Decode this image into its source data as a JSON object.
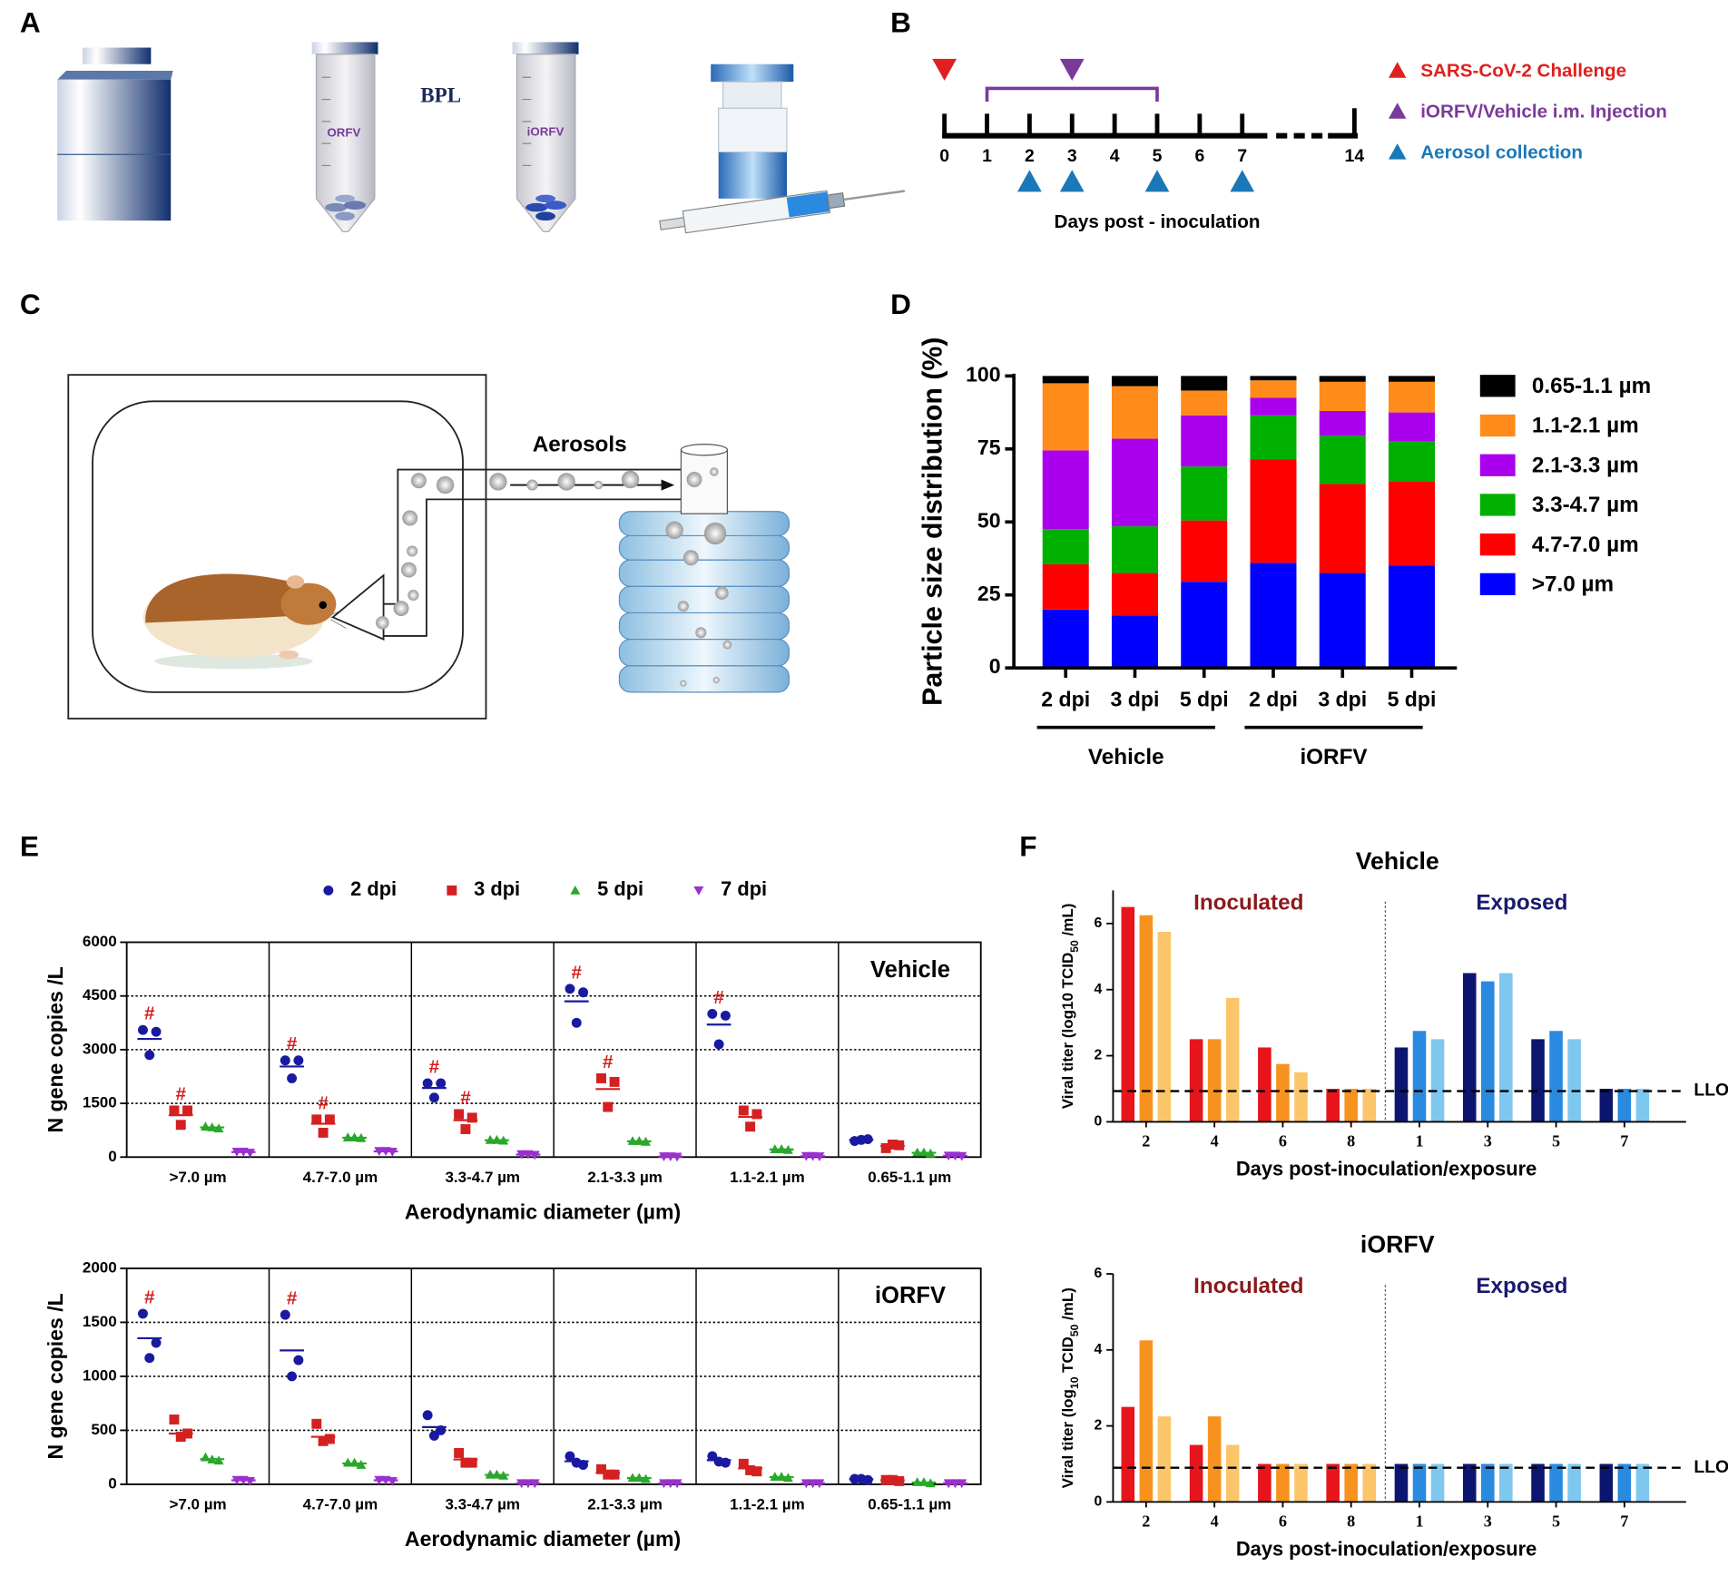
{
  "illustrations": {
    "A": {
      "panel": "A",
      "labels": [
        "ORFV",
        "iORFV"
      ],
      "reagent": "BPL"
    },
    "C": {
      "panel": "C",
      "label": "Aerosols"
    }
  },
  "chart_data": [
    {
      "type": "timeline",
      "panel": "B",
      "xlabel": "Days post - inoculation",
      "xticks": [
        0,
        1,
        2,
        3,
        4,
        5,
        6,
        7,
        14
      ],
      "events": [
        {
          "name": "SARS-CoV-2 Challenge",
          "color": "#e02020",
          "marker": "down",
          "days": [
            0
          ]
        },
        {
          "name": "iORFV/Vehicle i.m. Injection",
          "color": "#7a3a9a",
          "marker": "down",
          "days": [
            3
          ],
          "span": [
            1,
            5
          ]
        },
        {
          "name": "Aerosol collection",
          "color": "#1a78b8",
          "marker": "up",
          "days": [
            2,
            3,
            5,
            7
          ]
        }
      ]
    },
    {
      "type": "stacked_bar",
      "panel": "D",
      "ylabel": "Particle size distribution (%)",
      "groups": [
        {
          "name": "Vehicle",
          "categories": [
            "2 dpi",
            "3 dpi",
            "5 dpi"
          ]
        },
        {
          "name": "iORFV",
          "categories": [
            "2 dpi",
            "3 dpi",
            "5 dpi"
          ]
        }
      ],
      "ylim": [
        0,
        100
      ],
      "yticks": [
        0,
        25,
        50,
        75,
        100
      ],
      "series": [
        {
          "name": ">7.0 µm",
          "color": "#0000ff",
          "values": [
            20,
            18,
            29.5,
            36,
            32.5,
            35
          ]
        },
        {
          "name": "4.7-7.0 µm",
          "color": "#ff0000",
          "values": [
            15.5,
            14.5,
            21,
            35.5,
            30.5,
            29
          ]
        },
        {
          "name": "3.3-4.7 µm",
          "color": "#00b000",
          "values": [
            12,
            16,
            18.5,
            15,
            16.5,
            13.5
          ]
        },
        {
          "name": "2.1-3.3 µm",
          "color": "#aa00ee",
          "values": [
            27,
            30,
            17.5,
            6,
            8.5,
            10
          ]
        },
        {
          "name": "1.1-2.1 µm",
          "color": "#ff8c1a",
          "values": [
            23,
            18,
            8.5,
            6,
            10,
            10.5
          ]
        },
        {
          "name": "0.65-1.1 µm",
          "color": "#000000",
          "values": [
            2.5,
            3.5,
            5,
            1.5,
            2,
            2
          ]
        }
      ]
    },
    {
      "type": "dot",
      "panel": "E",
      "title": "Vehicle",
      "legend": true,
      "grid": true,
      "categories": [
        ">7.0 µm",
        "4.7-7.0 µm",
        "3.3-4.7 µm",
        "2.1-3.3 µm",
        "1.1-2.1 µm",
        "0.65-1.1 µm"
      ],
      "xlabel": "Aerodynamic diameter (µm)",
      "ylabel": "N gene copies /L",
      "ylim": [
        0,
        6000
      ],
      "yticks": [
        0,
        1500,
        3000,
        4500,
        6000
      ],
      "series": [
        {
          "name": "2 dpi",
          "color": "#1a1aa0",
          "marker": "circle",
          "values": [
            [
              3550,
              3500,
              2850
            ],
            [
              2700,
              2700,
              2200
            ],
            [
              2060,
              2060,
              1660
            ],
            [
              4700,
              4600,
              3750
            ],
            [
              4000,
              3950,
              3150
            ],
            [
              450,
              500,
              480
            ]
          ],
          "means": [
            3300,
            2530,
            1930,
            4350,
            3700,
            477
          ],
          "labels": [
            "#",
            "#",
            "#",
            "#",
            "#",
            null
          ]
        },
        {
          "name": "3 dpi",
          "color": "#d42020",
          "marker": "square",
          "values": [
            [
              1300,
              1300,
              900
            ],
            [
              1050,
              1050,
              680
            ],
            [
              1200,
              1100,
              780
            ],
            [
              2200,
              2100,
              1400
            ],
            [
              1300,
              1200,
              850
            ],
            [
              250,
              330,
              350
            ]
          ],
          "means": [
            1170,
            930,
            1030,
            1900,
            1120,
            310
          ],
          "labels": [
            "#",
            "#",
            "#",
            "#",
            null,
            null
          ]
        },
        {
          "name": "5 dpi",
          "color": "#2aa82a",
          "marker": "triangle-up",
          "values": [
            [
              850,
              800,
              830
            ],
            [
              550,
              530,
              550
            ],
            [
              480,
              460,
              480
            ],
            [
              450,
              430,
              450
            ],
            [
              220,
              200,
              220
            ],
            [
              130,
              100,
              130
            ]
          ],
          "means": [
            830,
            540,
            470,
            440,
            213,
            120
          ]
        },
        {
          "name": "7 dpi",
          "color": "#9b30d0",
          "marker": "triangle-down",
          "values": [
            [
              150,
              120,
              150
            ],
            [
              170,
              150,
              170
            ],
            [
              80,
              60,
              80
            ],
            [
              20,
              10,
              20
            ],
            [
              30,
              20,
              30
            ],
            [
              40,
              30,
              40
            ]
          ],
          "means": [
            140,
            160,
            70,
            17,
            27,
            37
          ]
        }
      ]
    },
    {
      "type": "dot",
      "title": "iORFV",
      "grid": true,
      "categories": [
        ">7.0 µm",
        "4.7-7.0 µm",
        "3.3-4.7 µm",
        "2.1-3.3 µm",
        "1.1-2.1 µm",
        "0.65-1.1 µm"
      ],
      "xlabel": "Aerodynamic diameter (µm)",
      "ylabel": "N gene copies /L",
      "ylim": [
        0,
        2000
      ],
      "yticks": [
        0,
        500,
        1000,
        1500,
        2000
      ],
      "series": [
        {
          "name": "2 dpi",
          "color": "#1a1aa0",
          "marker": "circle",
          "values": [
            [
              1580,
              1310,
              1170
            ],
            [
              1570,
              1150,
              1000
            ],
            [
              640,
              500,
              450
            ],
            [
              260,
              180,
              200
            ],
            [
              260,
              200,
              210
            ],
            [
              50,
              40,
              50
            ]
          ],
          "means": [
            1353,
            1240,
            530,
            213,
            223,
            47
          ],
          "labels": [
            "#",
            "#",
            null,
            null,
            null,
            null
          ]
        },
        {
          "name": "3 dpi",
          "color": "#d42020",
          "marker": "square",
          "values": [
            [
              600,
              470,
              440
            ],
            [
              560,
              420,
              400
            ],
            [
              290,
              200,
              200
            ],
            [
              140,
              90,
              90
            ],
            [
              190,
              120,
              130
            ],
            [
              40,
              30,
              40
            ]
          ],
          "means": [
            470,
            440,
            230,
            107,
            147,
            37
          ]
        },
        {
          "name": "5 dpi",
          "color": "#2aa82a",
          "marker": "triangle-up",
          "values": [
            [
              250,
              220,
              230
            ],
            [
              200,
              180,
              200
            ],
            [
              90,
              80,
              90
            ],
            [
              60,
              50,
              60
            ],
            [
              70,
              60,
              70
            ],
            [
              20,
              10,
              20
            ]
          ],
          "means": [
            233,
            193,
            87,
            57,
            67,
            17
          ]
        },
        {
          "name": "7 dpi",
          "color": "#9b30d0",
          "marker": "triangle-down",
          "values": [
            [
              40,
              30,
              40
            ],
            [
              40,
              30,
              40
            ],
            [
              10,
              10,
              10
            ],
            [
              10,
              10,
              10
            ],
            [
              10,
              10,
              10
            ],
            [
              10,
              10,
              10
            ]
          ],
          "means": [
            37,
            37,
            10,
            10,
            10,
            10
          ]
        }
      ]
    },
    {
      "type": "grouped_bar",
      "panel": "F",
      "title": "Vehicle",
      "xlabel": "Days post-inoculation/exposure",
      "ylabel_parts": [
        {
          "text": "Viral titer (log10 TCID"
        },
        {
          "text": "50",
          "sub": true
        },
        {
          "text": " /mL)"
        }
      ],
      "ylim": [
        0,
        7
      ],
      "yticks": [
        0,
        2,
        4,
        6
      ],
      "reference_line": {
        "value": 0.93,
        "label": "LLOD"
      },
      "groups": [
        {
          "name": "Inoculated",
          "color": "#8b1a1a",
          "categories": [
            "2",
            "4",
            "6",
            "8"
          ],
          "series": [
            {
              "color": "#e8141c",
              "values": [
                6.5,
                2.5,
                2.25,
                1
              ]
            },
            {
              "color": "#f7921e",
              "values": [
                6.25,
                2.5,
                1.75,
                1
              ]
            },
            {
              "color": "#fbc56a",
              "values": [
                5.75,
                3.75,
                1.5,
                1
              ]
            }
          ]
        },
        {
          "name": "Exposed",
          "color": "#1a1a6e",
          "categories": [
            "1",
            "3",
            "5",
            "7"
          ],
          "series": [
            {
              "color": "#0c1670",
              "values": [
                2.25,
                4.5,
                2.5,
                1
              ]
            },
            {
              "color": "#2a8ae0",
              "values": [
                2.75,
                4.25,
                2.75,
                1
              ]
            },
            {
              "color": "#7ec8f0",
              "values": [
                2.5,
                4.5,
                2.5,
                1
              ]
            }
          ]
        }
      ]
    },
    {
      "type": "grouped_bar",
      "title": "iORFV",
      "xlabel": "Days post-inoculation/exposure",
      "ylabel_parts": [
        {
          "text": "Viral titer (log"
        },
        {
          "text": "10",
          "sub": true
        },
        {
          "text": " TCID"
        },
        {
          "text": "50",
          "sub": true
        },
        {
          "text": " /mL)"
        }
      ],
      "ylim": [
        0,
        6
      ],
      "yticks": [
        0,
        2,
        4,
        6
      ],
      "reference_line": {
        "value": 0.9,
        "label": "LLOD"
      },
      "groups": [
        {
          "name": "Inoculated",
          "color": "#8b1a1a",
          "categories": [
            "2",
            "4",
            "6",
            "8"
          ],
          "series": [
            {
              "color": "#e8141c",
              "values": [
                2.5,
                1.5,
                1,
                1
              ]
            },
            {
              "color": "#f7921e",
              "values": [
                4.25,
                2.25,
                1,
                1
              ]
            },
            {
              "color": "#fbc56a",
              "values": [
                2.25,
                1.5,
                1,
                1
              ]
            }
          ]
        },
        {
          "name": "Exposed",
          "color": "#1a1a6e",
          "categories": [
            "1",
            "3",
            "5",
            "7"
          ],
          "series": [
            {
              "color": "#0c1670",
              "values": [
                1,
                1,
                1,
                1
              ]
            },
            {
              "color": "#2a8ae0",
              "values": [
                1,
                1,
                1,
                1
              ]
            },
            {
              "color": "#7ec8f0",
              "values": [
                1,
                1,
                1,
                1
              ]
            }
          ]
        }
      ]
    }
  ]
}
